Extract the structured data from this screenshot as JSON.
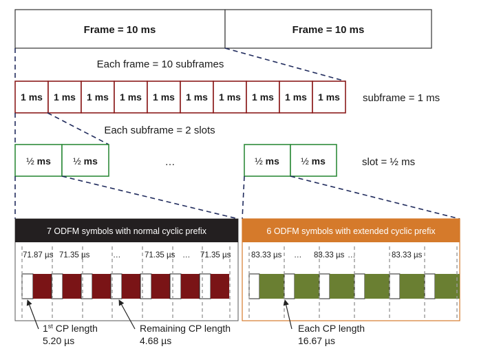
{
  "frames": [
    "Frame = 10 ms",
    "Frame = 10 ms"
  ],
  "frame_note": "Each frame = 10 subframes",
  "subframe_label": "1 ms",
  "subframe_count": 10,
  "subframe_note": "subframe = 1 ms",
  "subframe_split_note": "Each subframe = 2 slots",
  "slot_half": "½",
  "slot_unit": "ms",
  "ellipsis": "…",
  "slot_note": "slot = ½ ms",
  "normal_cp": {
    "title": "7 ODFM symbols with normal cyclic prefix",
    "title_bg": "#231f20",
    "symbol_color": "#7a1416",
    "durations": [
      "71.87 µs",
      "71.35 µs",
      "…",
      "71.35 µs",
      "…",
      "71.35 µs"
    ]
  },
  "extended_cp": {
    "title": "6 ODFM symbols with extended cyclic prefix",
    "title_bg": "#d57a2b",
    "symbol_color": "#6a7f32",
    "durations": [
      "83.33 µs",
      "…",
      "83.33 µs",
      "…",
      "83.33 µs"
    ]
  },
  "callouts": {
    "first_cp_sup": "st",
    "first_cp_label": "1",
    "first_cp_rest": "CP length",
    "first_cp_value": "5.20 µs",
    "remaining_cp_label": "Remaining CP length",
    "remaining_cp_value": "4.68 µs",
    "each_cp_label": "Each CP length",
    "each_cp_value": "16.67 µs"
  },
  "colors": {
    "subframe_border": "#8b1a1a",
    "slot_border": "#2e8b3a",
    "dashed_link": "#1f2a5c"
  }
}
